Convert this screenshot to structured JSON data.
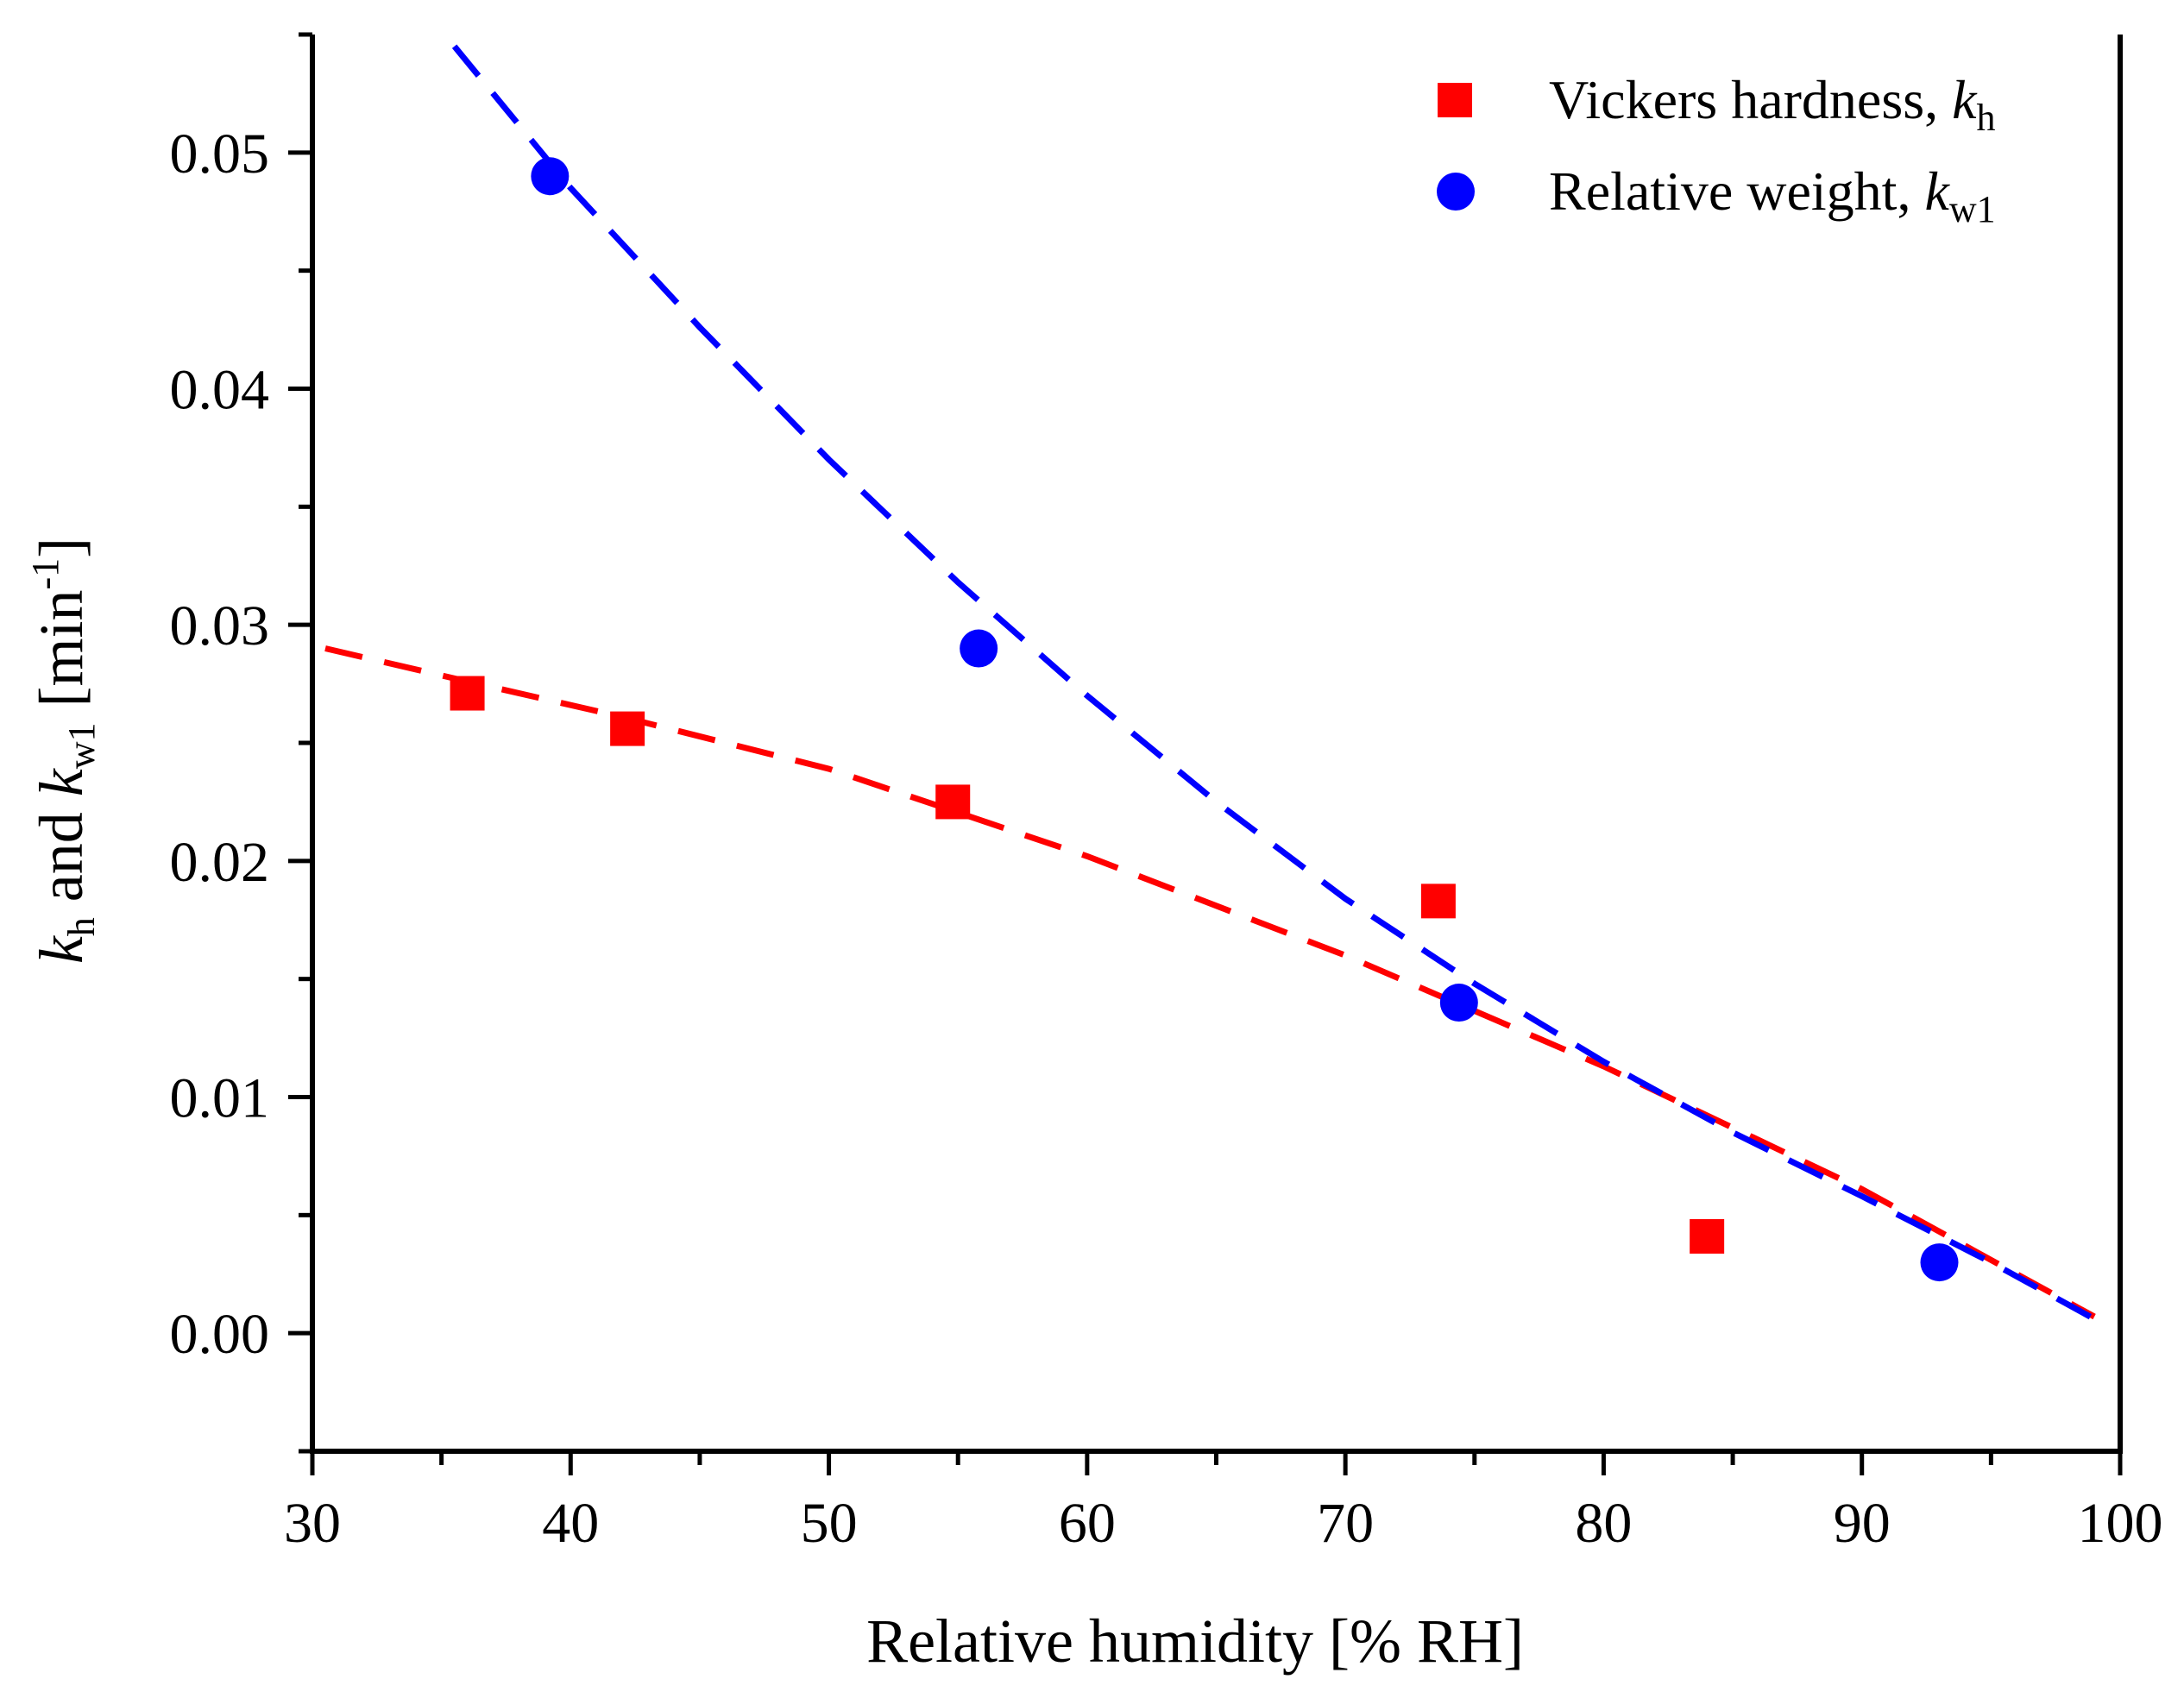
{
  "chart_data": {
    "type": "scatter",
    "title": "",
    "xlabel": "Relative humidity [% RH]",
    "ylabel": {
      "k1": "k",
      "sub1": "h",
      "and": " and ",
      "k2": "k",
      "sub2": "w1",
      "unit": " [min",
      "sup": "-1",
      "close": "]"
    },
    "xlim": [
      30,
      100
    ],
    "ylim": [
      -0.005,
      0.055
    ],
    "xticks": [
      30,
      40,
      50,
      60,
      70,
      80,
      90,
      100
    ],
    "xtick_labels": [
      "30",
      "40",
      "50",
      "60",
      "70",
      "80",
      "90",
      "100"
    ],
    "yticks": [
      0.0,
      0.01,
      0.02,
      0.03,
      0.04,
      0.05
    ],
    "ytick_labels": [
      "0.00",
      "0.01",
      "0.02",
      "0.03",
      "0.04",
      "0.05"
    ],
    "grid": false,
    "legend_position": "top-right",
    "series": [
      {
        "name": "Vickers hardness, k_h",
        "legend_main": "Vickers hardness, ",
        "legend_k": "k",
        "legend_sub": "h",
        "marker": "square",
        "color": "#ff0000",
        "x": [
          36.0,
          42.2,
          54.8,
          73.6,
          84.0
        ],
        "y": [
          0.0271,
          0.0256,
          0.0225,
          0.0183,
          0.0041
        ],
        "fit": {
          "style": "dashed",
          "x": [
            30.5,
            36,
            42,
            50,
            60,
            70,
            80,
            90,
            99
          ],
          "y": [
            0.029,
            0.0276,
            0.0261,
            0.0239,
            0.0202,
            0.016,
            0.0113,
            0.0061,
            0.0007
          ]
        }
      },
      {
        "name": "Relative weight, k_w1",
        "legend_main": "Relative weight, ",
        "legend_k": "k",
        "legend_sub": "w1",
        "marker": "circle",
        "color": "#0000ff",
        "x": [
          39.2,
          55.8,
          74.4,
          93.0
        ],
        "y": [
          0.049,
          0.029,
          0.014,
          0.003
        ],
        "fit": {
          "style": "dashed",
          "x": [
            35.5,
            40,
            45,
            50,
            55,
            60,
            65,
            70,
            75,
            80,
            85,
            90,
            95,
            99
          ],
          "y": [
            0.0545,
            0.0485,
            0.0426,
            0.037,
            0.0318,
            0.027,
            0.0225,
            0.0184,
            0.0148,
            0.0115,
            0.0085,
            0.0058,
            0.003,
            0.0006
          ]
        }
      }
    ]
  }
}
